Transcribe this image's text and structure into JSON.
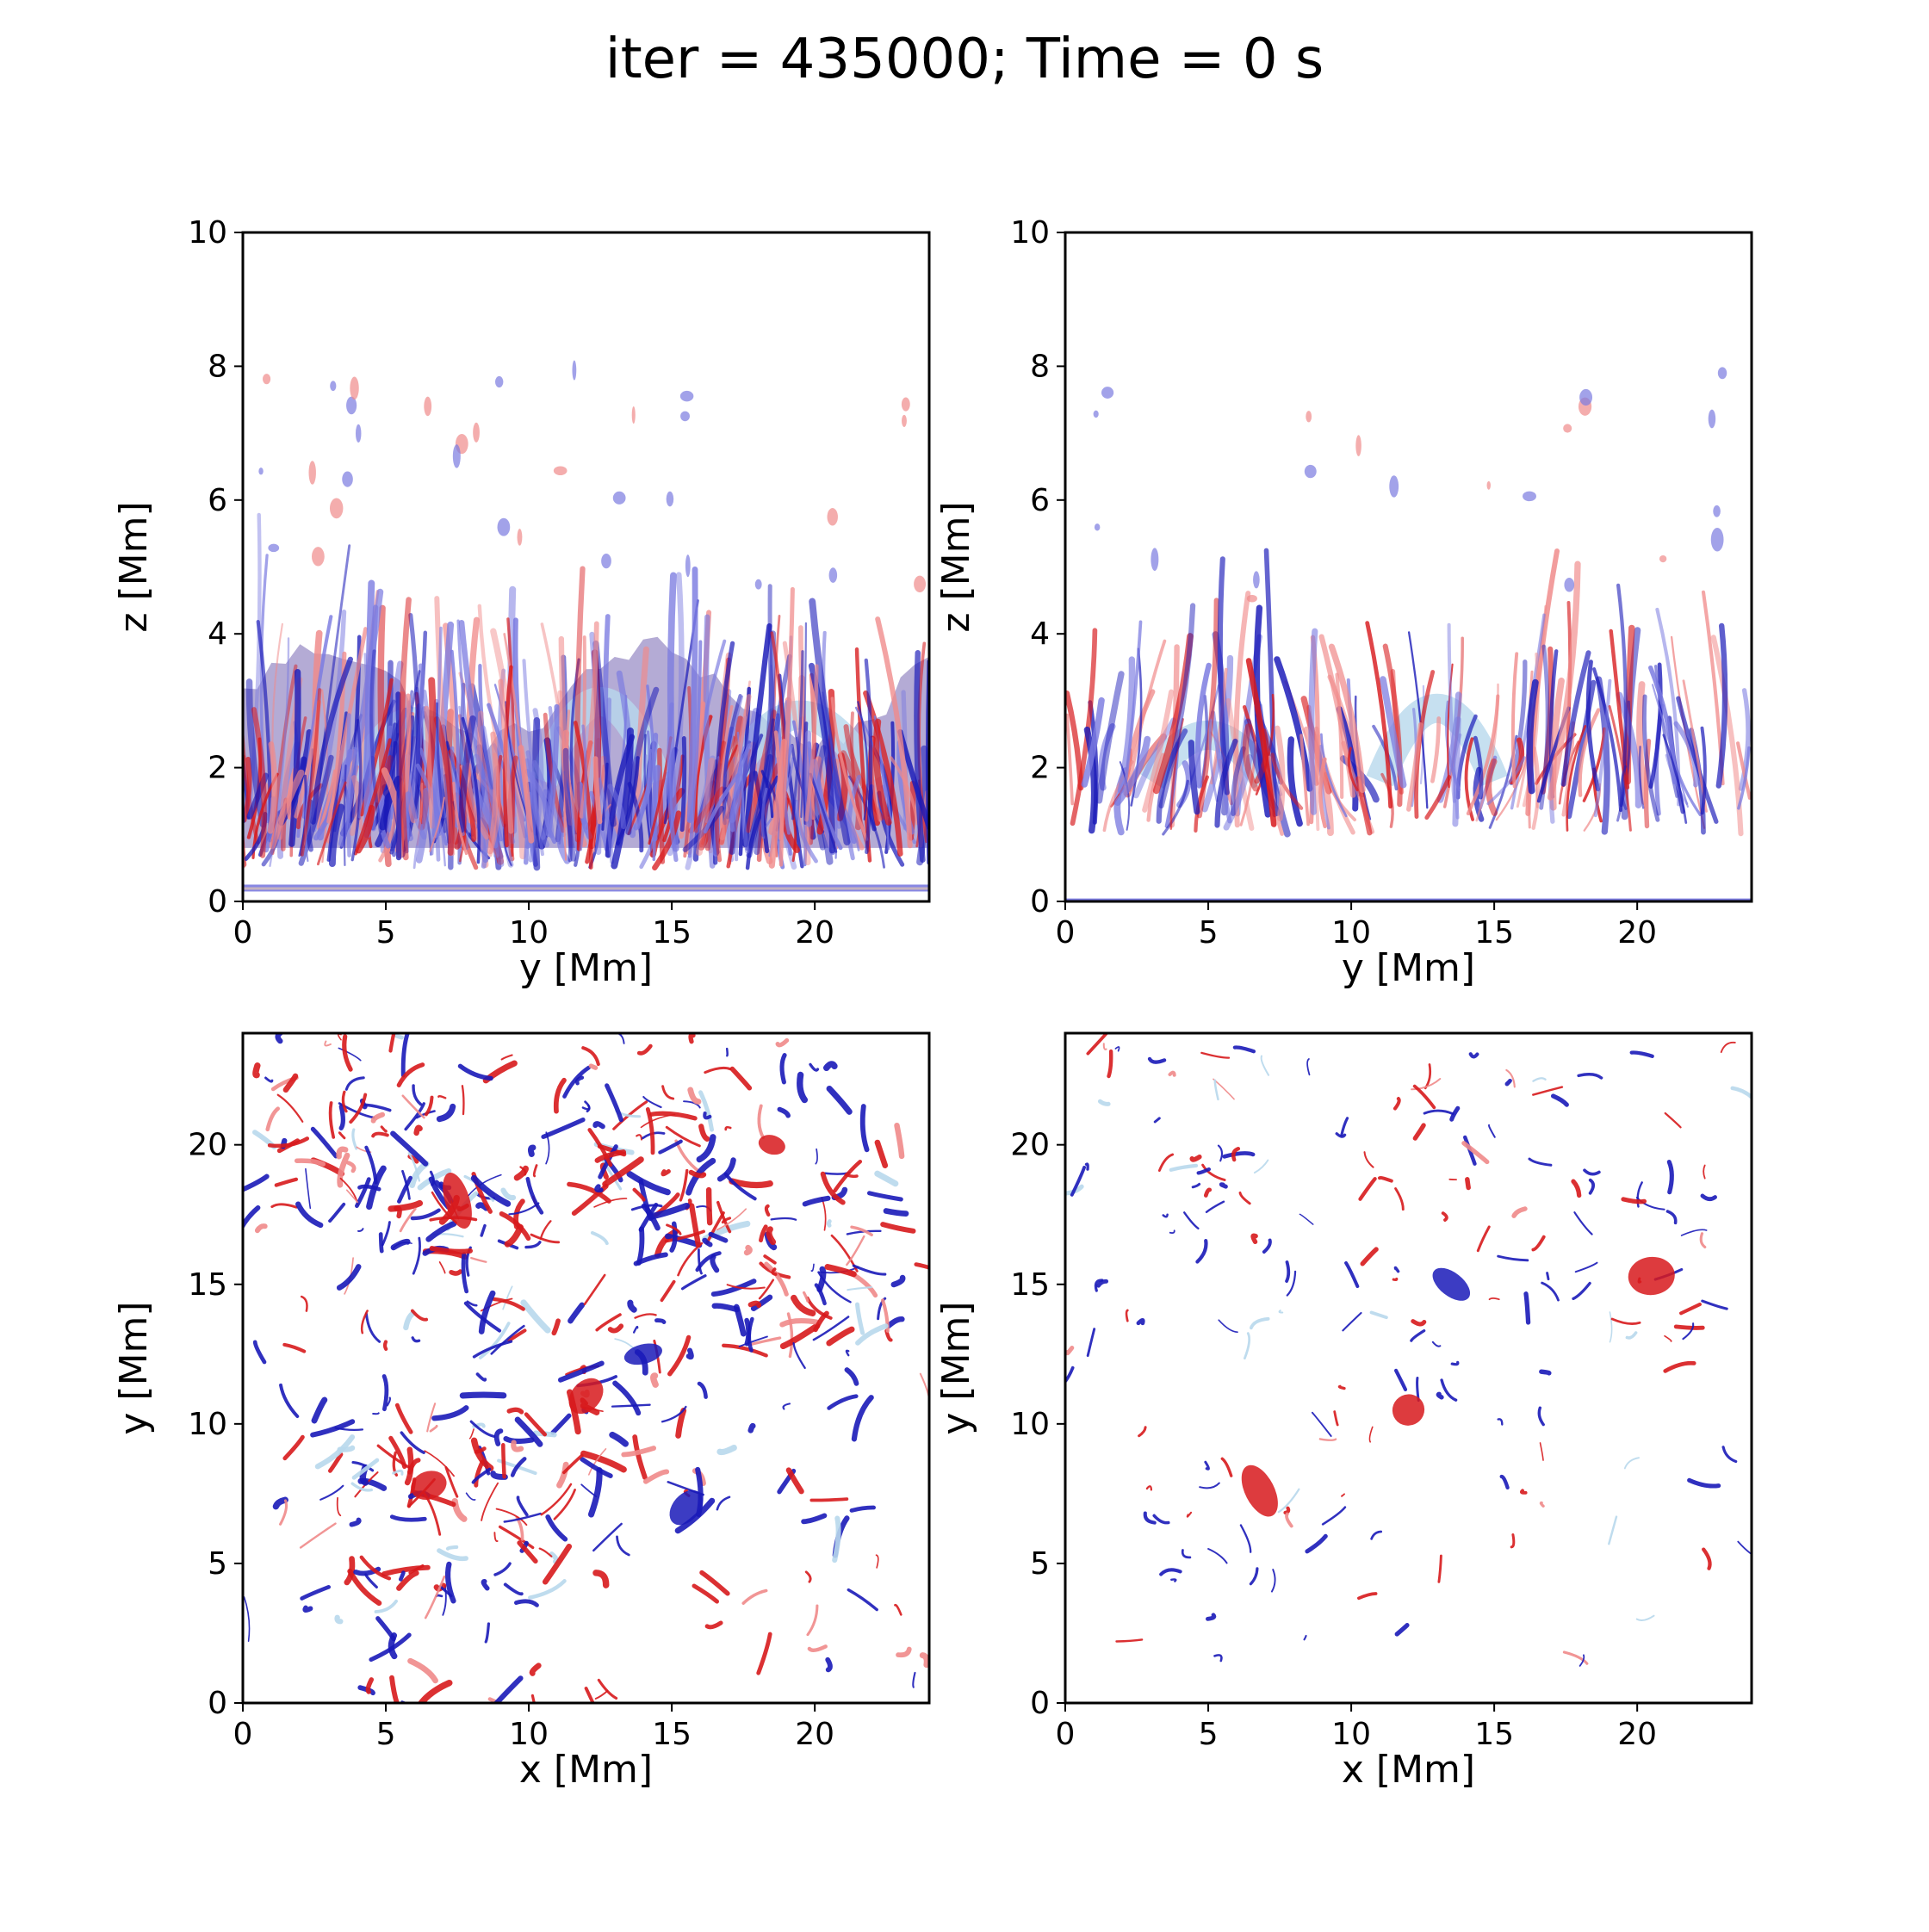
{
  "figure": {
    "title": "iter = 435000; Time = 0 s"
  },
  "colors": {
    "positive": "#d7191c",
    "negative": "#1a1ab8",
    "positive_light": "#f08a8a",
    "negative_light": "#7a7ae0",
    "pale_blue": "#b8d8ec",
    "mix": "#c4b2c0",
    "axes": "#000000",
    "background": "#ffffff"
  },
  "chart_data": [
    {
      "id": "top-left",
      "type": "heatmap",
      "description_view": "side view",
      "xlabel": "y [Mm]",
      "ylabel": "z [Mm]",
      "xlim": [
        0,
        24
      ],
      "ylim": [
        0,
        10
      ],
      "xticks": [
        0,
        5,
        10,
        15,
        20
      ],
      "yticks": [
        0,
        2,
        4,
        6,
        8,
        10
      ],
      "density": 1.0,
      "band": [
        0.5,
        4.5
      ],
      "floor": 0.2
    },
    {
      "id": "top-right",
      "type": "heatmap",
      "description_view": "side view",
      "xlabel": "y [Mm]",
      "ylabel": "z [Mm]",
      "xlim": [
        0,
        24
      ],
      "ylim": [
        0,
        10
      ],
      "xticks": [
        0,
        5,
        10,
        15,
        20
      ],
      "yticks": [
        0,
        2,
        4,
        6,
        8,
        10
      ],
      "density": 0.45,
      "band": [
        1.0,
        4.5
      ],
      "floor": 0.0
    },
    {
      "id": "bottom-left",
      "type": "heatmap",
      "description_view": "top view",
      "xlabel": "x [Mm]",
      "ylabel": "y [Mm]",
      "xlim": [
        0,
        24
      ],
      "ylim": [
        0,
        24
      ],
      "xticks": [
        0,
        5,
        10,
        15,
        20
      ],
      "yticks": [
        0,
        5,
        10,
        15,
        20
      ],
      "density": 1.0
    },
    {
      "id": "bottom-right",
      "type": "heatmap",
      "description_view": "top view",
      "xlabel": "x [Mm]",
      "ylabel": "y [Mm]",
      "xlim": [
        0,
        24
      ],
      "ylim": [
        0,
        24
      ],
      "xticks": [
        0,
        5,
        10,
        15,
        20
      ],
      "yticks": [
        0,
        5,
        10,
        15,
        20
      ],
      "density": 0.35
    }
  ]
}
